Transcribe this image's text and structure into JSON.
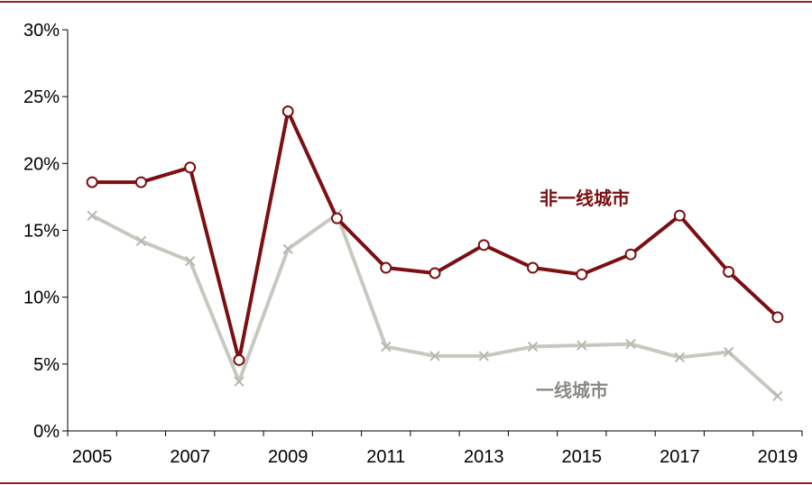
{
  "chart_data": {
    "type": "line",
    "title": "",
    "xlabel": "",
    "ylabel": "",
    "x": [
      2005,
      2006,
      2007,
      2008,
      2009,
      2010,
      2011,
      2012,
      2013,
      2014,
      2015,
      2016,
      2017,
      2018,
      2019
    ],
    "x_tick_labels": [
      "2005",
      "2007",
      "2009",
      "2011",
      "2013",
      "2015",
      "2017",
      "2019"
    ],
    "x_tick_values": [
      2005,
      2007,
      2009,
      2011,
      2013,
      2015,
      2017,
      2019
    ],
    "y_tick_labels": [
      "0%",
      "5%",
      "10%",
      "15%",
      "20%",
      "25%",
      "30%"
    ],
    "y_tick_values": [
      0,
      5,
      10,
      15,
      20,
      25,
      30
    ],
    "ylim": [
      0,
      30
    ],
    "grid": false,
    "series": [
      {
        "name": "非一线城市",
        "color": "#7b0f12",
        "marker": "circle",
        "values": [
          18.6,
          18.6,
          19.7,
          5.3,
          23.9,
          15.9,
          12.2,
          11.8,
          13.9,
          12.2,
          11.7,
          13.2,
          16.1,
          11.9,
          8.5
        ]
      },
      {
        "name": "一线城市",
        "color": "#c8c8c0",
        "marker": "x",
        "values": [
          16.1,
          14.2,
          12.7,
          3.7,
          13.6,
          16.2,
          6.3,
          5.6,
          5.6,
          6.3,
          6.4,
          6.5,
          5.5,
          5.9,
          2.6
        ]
      }
    ]
  }
}
